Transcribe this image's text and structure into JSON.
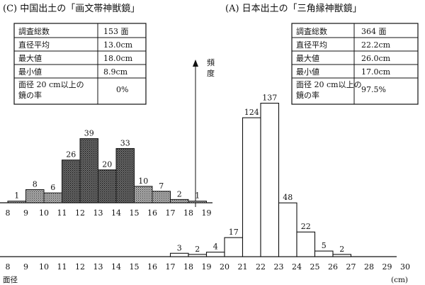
{
  "chart_data": [
    {
      "type": "bar",
      "title": "(C) 中国出土の「画文帯神獣鏡」",
      "xlabel": "",
      "ylabel": "",
      "categories": [
        "8",
        "9",
        "10",
        "11",
        "12",
        "13",
        "14",
        "15",
        "16",
        "17",
        "18"
      ],
      "values": [
        1,
        8,
        6,
        26,
        39,
        20,
        33,
        10,
        7,
        2,
        1
      ],
      "x_ticks": [
        "8",
        "9",
        "10",
        "11",
        "12",
        "13",
        "14",
        "15",
        "16",
        "17",
        "18",
        "19"
      ],
      "grid": false,
      "stats_table": [
        {
          "label": "調査総数",
          "value": "153 面"
        },
        {
          "label": "直径平均",
          "value": "13.0cm"
        },
        {
          "label": "最大値",
          "value": "18.0cm"
        },
        {
          "label": "最小値",
          "value": "8.9cm"
        },
        {
          "label": "面径 20 cm以上の鏡の率",
          "value": "0%"
        }
      ]
    },
    {
      "type": "bar",
      "title": "(A) 日本出土の「三角縁神獣鏡」",
      "xlabel": "面径",
      "ylabel": "頻度",
      "unit": "(cm)",
      "categories": [
        "17",
        "18",
        "19",
        "20",
        "21",
        "22",
        "23",
        "24",
        "25",
        "26"
      ],
      "values": [
        3,
        2,
        4,
        17,
        124,
        137,
        48,
        22,
        5,
        2
      ],
      "x_ticks": [
        "8",
        "9",
        "10",
        "11",
        "12",
        "13",
        "14",
        "15",
        "16",
        "17",
        "18",
        "19",
        "20",
        "21",
        "22",
        "23",
        "24",
        "25",
        "26",
        "27",
        "28",
        "29",
        "30"
      ],
      "grid": false,
      "stats_table": [
        {
          "label": "調査総数",
          "value": "364 面"
        },
        {
          "label": "直径平均",
          "value": "22.2cm"
        },
        {
          "label": "最大値",
          "value": "26.0cm"
        },
        {
          "label": "最小値",
          "value": "17.0cm"
        },
        {
          "label": "面径 20 cm以上の鏡の率",
          "value": "97.5%"
        }
      ]
    }
  ]
}
